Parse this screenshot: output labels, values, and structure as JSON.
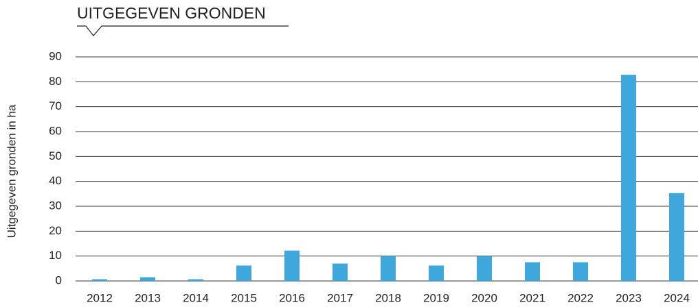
{
  "chart_data": {
    "type": "bar",
    "title": "UITGEGEVEN GRONDEN",
    "y_label": "Uitgegeven gronden in ha",
    "categories": [
      "2012",
      "2013",
      "2014",
      "2015",
      "2016",
      "2017",
      "2018",
      "2019",
      "2020",
      "2021",
      "2022",
      "2023",
      "2024"
    ],
    "values": [
      0.7,
      1.5,
      0.7,
      6.2,
      12.2,
      7,
      10,
      6.2,
      10,
      7.5,
      7.5,
      82.8,
      35.3
    ],
    "color": "#3ea8dc",
    "ylim": [
      0,
      90
    ],
    "yticks": [
      0,
      10,
      20,
      30,
      40,
      50,
      60,
      70,
      80,
      90
    ],
    "grid": true
  }
}
